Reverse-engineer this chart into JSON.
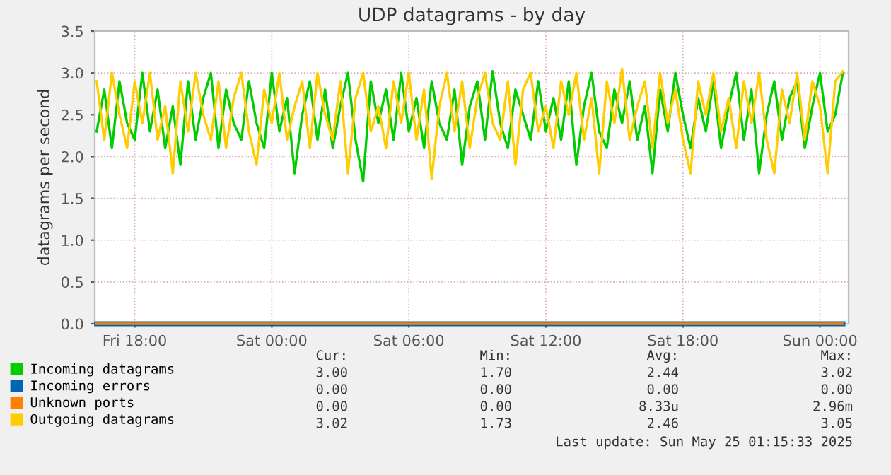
{
  "chart_data": {
    "type": "line",
    "title": "UDP datagrams - by day",
    "ylabel": "datagrams per second",
    "x": [
      "2025-05-23T16:20",
      "2025-05-23T16:40",
      "2025-05-23T17:00",
      "2025-05-23T17:20",
      "2025-05-23T17:40",
      "2025-05-23T18:00",
      "2025-05-23T18:20",
      "2025-05-23T18:40",
      "2025-05-23T19:00",
      "2025-05-23T19:20",
      "2025-05-23T19:40",
      "2025-05-23T20:00",
      "2025-05-23T20:20",
      "2025-05-23T20:40",
      "2025-05-23T21:00",
      "2025-05-23T21:20",
      "2025-05-23T21:40",
      "2025-05-23T22:00",
      "2025-05-23T22:20",
      "2025-05-23T22:40",
      "2025-05-23T23:00",
      "2025-05-23T23:20",
      "2025-05-23T23:40",
      "2025-05-24T00:00",
      "2025-05-24T00:20",
      "2025-05-24T00:40",
      "2025-05-24T01:00",
      "2025-05-24T01:20",
      "2025-05-24T01:40",
      "2025-05-24T02:00",
      "2025-05-24T02:20",
      "2025-05-24T02:40",
      "2025-05-24T03:00",
      "2025-05-24T03:20",
      "2025-05-24T03:40",
      "2025-05-24T04:00",
      "2025-05-24T04:20",
      "2025-05-24T04:40",
      "2025-05-24T05:00",
      "2025-05-24T05:20",
      "2025-05-24T05:40",
      "2025-05-24T06:00",
      "2025-05-24T06:20",
      "2025-05-24T06:40",
      "2025-05-24T07:00",
      "2025-05-24T07:20",
      "2025-05-24T07:40",
      "2025-05-24T08:00",
      "2025-05-24T08:20",
      "2025-05-24T08:40",
      "2025-05-24T09:00",
      "2025-05-24T09:20",
      "2025-05-24T09:40",
      "2025-05-24T10:00",
      "2025-05-24T10:20",
      "2025-05-24T10:40",
      "2025-05-24T11:00",
      "2025-05-24T11:20",
      "2025-05-24T11:40",
      "2025-05-24T12:00",
      "2025-05-24T12:20",
      "2025-05-24T12:40",
      "2025-05-24T13:00",
      "2025-05-24T13:20",
      "2025-05-24T13:40",
      "2025-05-24T14:00",
      "2025-05-24T14:20",
      "2025-05-24T14:40",
      "2025-05-24T15:00",
      "2025-05-24T15:20",
      "2025-05-24T15:40",
      "2025-05-24T16:00",
      "2025-05-24T16:20",
      "2025-05-24T16:40",
      "2025-05-24T17:00",
      "2025-05-24T17:20",
      "2025-05-24T17:40",
      "2025-05-24T18:00",
      "2025-05-24T18:20",
      "2025-05-24T18:40",
      "2025-05-24T19:00",
      "2025-05-24T19:20",
      "2025-05-24T19:40",
      "2025-05-24T20:00",
      "2025-05-24T20:20",
      "2025-05-24T20:40",
      "2025-05-24T21:00",
      "2025-05-24T21:20",
      "2025-05-24T21:40",
      "2025-05-24T22:00",
      "2025-05-24T22:20",
      "2025-05-24T22:40",
      "2025-05-24T23:00",
      "2025-05-24T23:20",
      "2025-05-24T23:40",
      "2025-05-25T00:00",
      "2025-05-25T00:20",
      "2025-05-25T00:40",
      "2025-05-25T01:00"
    ],
    "series": [
      {
        "name": "Incoming datagrams",
        "color": "#00cc00",
        "values": [
          2.3,
          2.8,
          2.1,
          2.9,
          2.4,
          2.2,
          3.0,
          2.3,
          2.8,
          2.1,
          2.6,
          1.9,
          2.9,
          2.2,
          2.7,
          3.0,
          2.1,
          2.8,
          2.4,
          2.2,
          2.9,
          2.4,
          2.1,
          3.0,
          2.3,
          2.7,
          1.8,
          2.5,
          2.9,
          2.2,
          2.8,
          2.1,
          2.6,
          3.0,
          2.2,
          1.7,
          2.9,
          2.4,
          2.8,
          2.2,
          3.0,
          2.3,
          2.7,
          2.1,
          2.9,
          2.4,
          2.2,
          2.8,
          1.9,
          2.6,
          2.9,
          2.2,
          3.02,
          2.4,
          2.1,
          2.8,
          2.5,
          2.2,
          2.9,
          2.3,
          2.7,
          2.2,
          2.9,
          1.9,
          2.6,
          3.0,
          2.3,
          2.1,
          2.8,
          2.4,
          2.9,
          2.2,
          2.6,
          1.8,
          2.8,
          2.3,
          3.0,
          2.5,
          2.1,
          2.7,
          2.3,
          2.9,
          2.1,
          2.6,
          3.0,
          2.2,
          2.8,
          1.8,
          2.5,
          2.9,
          2.2,
          2.7,
          2.9,
          2.1,
          2.6,
          3.0,
          2.3,
          2.5,
          3.0
        ]
      },
      {
        "name": "Incoming errors",
        "color": "#0066b3",
        "x": [
          "2025-05-23T16:20",
          "2025-05-25T01:00"
        ],
        "values": [
          0,
          0
        ]
      },
      {
        "name": "Unknown ports",
        "color": "#ff8000",
        "x": [
          "2025-05-23T16:20",
          "2025-05-25T01:00"
        ],
        "values": [
          0,
          0
        ]
      },
      {
        "name": "Outgoing datagrams",
        "color": "#ffcc00",
        "values": [
          2.9,
          2.2,
          3.0,
          2.5,
          2.1,
          2.9,
          2.4,
          3.0,
          2.2,
          2.6,
          1.8,
          2.9,
          2.3,
          3.0,
          2.5,
          2.2,
          2.9,
          2.1,
          2.7,
          3.0,
          2.3,
          1.9,
          2.8,
          2.4,
          3.0,
          2.2,
          2.6,
          2.9,
          2.1,
          3.0,
          2.5,
          2.2,
          2.9,
          1.8,
          2.7,
          3.0,
          2.3,
          2.6,
          2.1,
          2.9,
          2.4,
          3.0,
          2.2,
          2.8,
          1.73,
          2.6,
          3.0,
          2.3,
          2.9,
          2.1,
          2.7,
          3.0,
          2.4,
          2.2,
          2.9,
          1.9,
          2.8,
          3.0,
          2.3,
          2.6,
          2.1,
          2.9,
          2.5,
          3.0,
          2.2,
          2.7,
          1.8,
          2.9,
          2.4,
          3.05,
          2.2,
          2.6,
          2.9,
          2.1,
          3.0,
          2.4,
          2.8,
          2.2,
          1.8,
          2.9,
          2.5,
          3.0,
          2.3,
          2.7,
          2.1,
          2.9,
          2.4,
          3.0,
          2.2,
          1.8,
          2.8,
          2.4,
          3.0,
          2.2,
          2.9,
          2.6,
          1.8,
          2.9,
          3.02
        ]
      }
    ],
    "xlim": [
      "2025-05-23T16:15",
      "2025-05-25T01:15"
    ],
    "xticks": [
      {
        "value": "2025-05-23T18:00",
        "label": "Fri 18:00"
      },
      {
        "value": "2025-05-24T00:00",
        "label": "Sat 00:00"
      },
      {
        "value": "2025-05-24T06:00",
        "label": "Sat 06:00"
      },
      {
        "value": "2025-05-24T12:00",
        "label": "Sat 12:00"
      },
      {
        "value": "2025-05-24T18:00",
        "label": "Sat 18:00"
      },
      {
        "value": "2025-05-25T00:00",
        "label": "Sun 00:00"
      }
    ],
    "ylim": [
      0,
      3.5
    ],
    "yticks": [
      {
        "value": 0,
        "label": "0.0"
      },
      {
        "value": 0.5,
        "label": "0.5"
      },
      {
        "value": 1,
        "label": "1.0"
      },
      {
        "value": 1.5,
        "label": "1.5"
      },
      {
        "value": 2,
        "label": "2.0"
      },
      {
        "value": 2.5,
        "label": "2.5"
      },
      {
        "value": 3,
        "label": "3.0"
      },
      {
        "value": 3.5,
        "label": "3.5"
      }
    ],
    "grid": true,
    "legend": "bottom",
    "line_style": "solid",
    "marker": "none",
    "annotations": [
      "Cur:",
      "Min:",
      "Avg:",
      "Max:",
      "3.00",
      "1.70",
      "2.44",
      "3.02",
      "0.00",
      "0.00",
      "0.00",
      "0.00",
      "0.00",
      "0.00",
      "8.33u",
      "2.96m",
      "3.02",
      "1.73",
      "2.46",
      "3.05",
      "Last update: Sun May 25 01:15:33 2025"
    ]
  }
}
